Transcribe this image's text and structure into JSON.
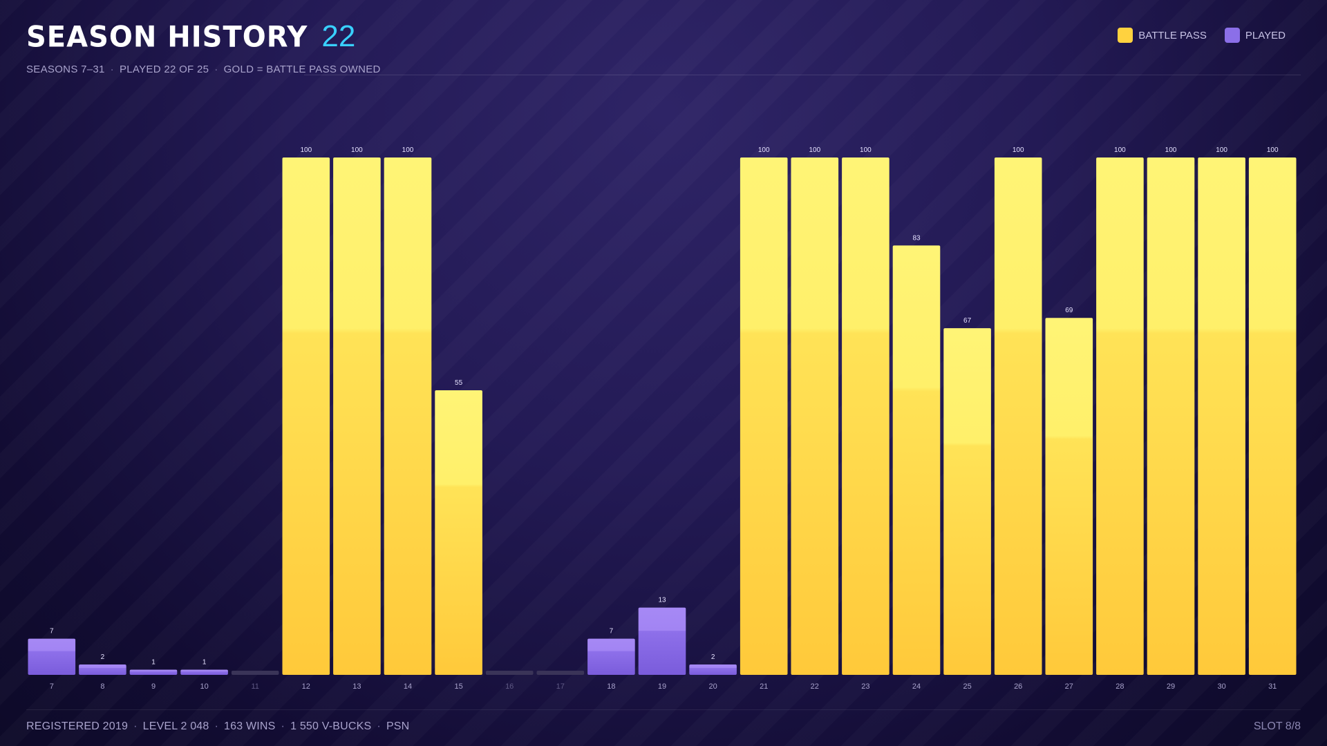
{
  "header": {
    "title": "SEASON HISTORY",
    "title_count": "22",
    "subtitle_parts": [
      "SEASONS 7–31",
      "PLAYED 22 OF 25",
      "GOLD = BATTLE PASS OWNED"
    ],
    "separator": "·"
  },
  "legend": {
    "battle_pass_label": "BATTLE PASS",
    "played_label": "PLAYED"
  },
  "colors": {
    "battle_pass": "#ffd23f",
    "played": "#8b6fe8",
    "empty": "#3a3458",
    "accent": "#39d0ff"
  },
  "chart_data": {
    "type": "bar",
    "categories": [
      "7",
      "8",
      "9",
      "10",
      "11",
      "12",
      "13",
      "14",
      "15",
      "16",
      "17",
      "18",
      "19",
      "20",
      "21",
      "22",
      "23",
      "24",
      "25",
      "26",
      "27",
      "28",
      "29",
      "30",
      "31"
    ],
    "values": [
      7,
      2,
      1,
      1,
      0,
      100,
      100,
      100,
      55,
      0,
      0,
      7,
      13,
      2,
      100,
      100,
      100,
      83,
      67,
      100,
      69,
      100,
      100,
      100,
      100
    ],
    "battle_pass": [
      false,
      false,
      false,
      false,
      false,
      true,
      true,
      true,
      true,
      false,
      false,
      false,
      false,
      false,
      true,
      true,
      true,
      true,
      true,
      true,
      true,
      true,
      true,
      true,
      true
    ],
    "data_labels": [
      "7",
      "2",
      "1",
      "1",
      "",
      "100",
      "100",
      "100",
      "55",
      "",
      "",
      "7",
      "13",
      "2",
      "100",
      "100",
      "100",
      "83",
      "67",
      "100",
      "69",
      "100",
      "100",
      "100",
      "100"
    ],
    "title": "SEASON HISTORY",
    "xlabel": "",
    "ylabel": "",
    "ylim": [
      0,
      100
    ],
    "grid": false,
    "legend_position": "top-right"
  },
  "footer": {
    "parts": [
      "REGISTERED 2019",
      "LEVEL 2 048",
      "163 WINS",
      "1 550 V-BUCKS",
      "PSN"
    ],
    "slot": "SLOT 8/8"
  }
}
